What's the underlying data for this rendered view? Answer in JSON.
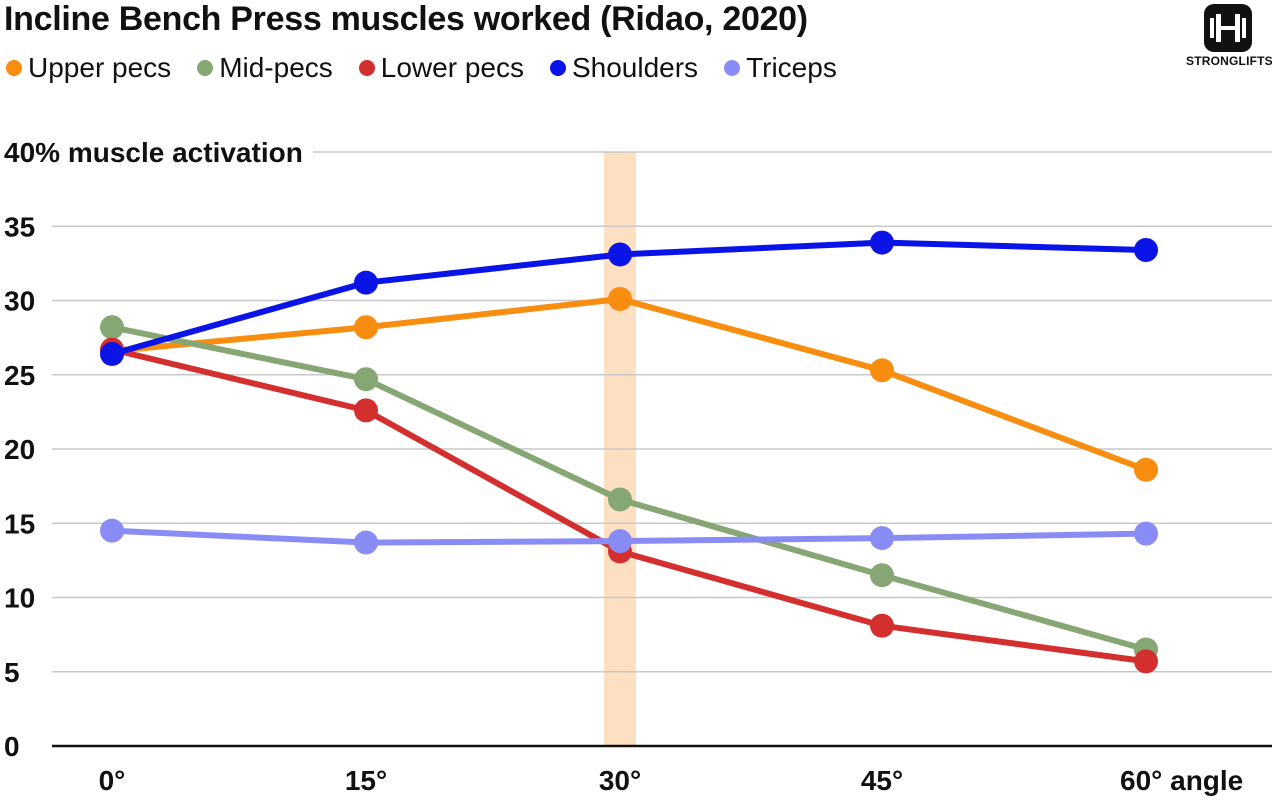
{
  "title": "Incline Bench Press muscles worked (Ridao, 2020)",
  "brand": {
    "name": "STRONGLIFTS",
    "icon": "barbell-logo-icon"
  },
  "chart_data": {
    "type": "line",
    "title": "Incline Bench Press muscles worked (Ridao, 2020)",
    "ylabel": "% muscle activation",
    "xlabel": "angle",
    "ylim": [
      0,
      40
    ],
    "y_ticks": [
      0,
      5,
      10,
      15,
      20,
      25,
      30,
      35,
      40
    ],
    "y_tick_labels": [
      "0",
      "5",
      "10",
      "15",
      "20",
      "25",
      "30",
      "35",
      "40% muscle activation"
    ],
    "categories": [
      "0°",
      "15°",
      "30°",
      "45°",
      "60°"
    ],
    "x_tick_labels": [
      "0°",
      "15°",
      "30°",
      "45°",
      "60° angle"
    ],
    "highlight_category": "30°",
    "highlight_color": "#fde0c2",
    "grid": true,
    "legend_position": "top",
    "series": [
      {
        "name": "Upper pecs",
        "color": "#f88d0f",
        "values": [
          26.6,
          28.2,
          30.1,
          25.3,
          18.6
        ]
      },
      {
        "name": "Mid-pecs",
        "color": "#86a673",
        "values": [
          28.2,
          24.7,
          16.6,
          11.5,
          6.5
        ]
      },
      {
        "name": "Lower pecs",
        "color": "#d32f2f",
        "values": [
          26.7,
          22.6,
          13.1,
          8.1,
          5.7
        ]
      },
      {
        "name": "Shoulders",
        "color": "#0a14e6",
        "values": [
          26.4,
          31.2,
          33.1,
          33.9,
          33.4
        ]
      },
      {
        "name": "Triceps",
        "color": "#8a8cf6",
        "values": [
          14.5,
          13.7,
          13.8,
          14.0,
          14.3
        ]
      }
    ]
  }
}
